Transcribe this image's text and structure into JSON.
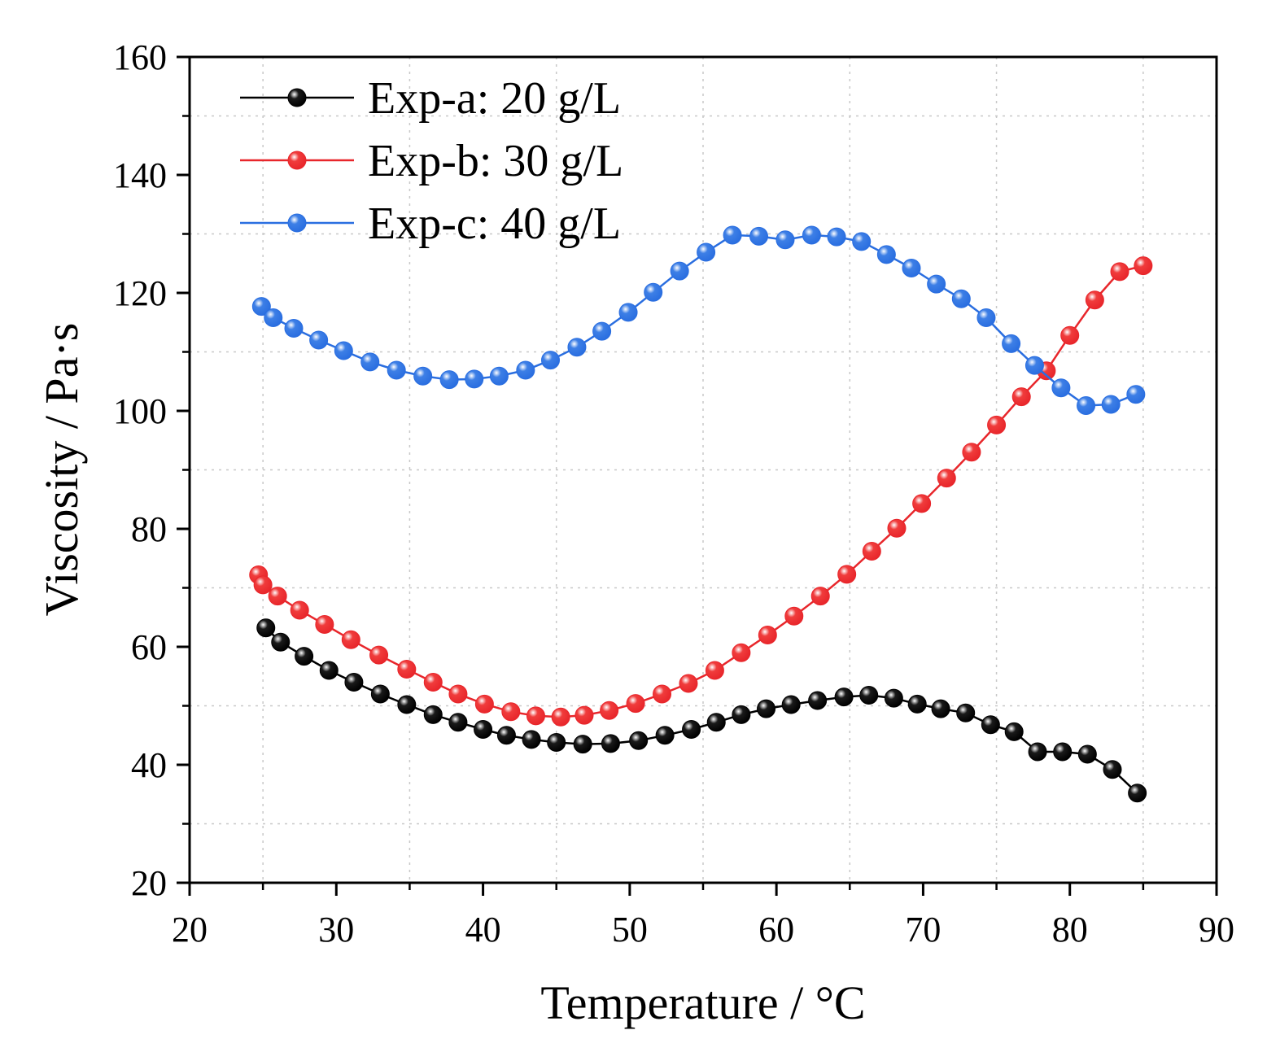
{
  "chart_data": {
    "type": "line",
    "title": "",
    "xlabel": "Temperature / °C",
    "ylabel": "Viscosity / Pa·s",
    "xlim": [
      20,
      90
    ],
    "ylim": [
      20,
      160
    ],
    "xticks": [
      20,
      30,
      40,
      50,
      60,
      70,
      80,
      90
    ],
    "yticks": [
      20,
      40,
      60,
      80,
      100,
      120,
      140,
      160
    ],
    "grid": true,
    "legend_position": "top-left",
    "series": [
      {
        "name": "Exp-a: 20 g/L",
        "color": "#000000",
        "marker_color": "#1a1a1a",
        "x": [
          25.2,
          26.2,
          27.8,
          29.5,
          31.2,
          33.0,
          34.8,
          36.6,
          38.3,
          40.0,
          41.6,
          43.3,
          45.0,
          46.8,
          48.7,
          50.6,
          52.4,
          54.2,
          55.9,
          57.6,
          59.3,
          61.0,
          62.8,
          64.6,
          66.3,
          68.0,
          69.6,
          71.2,
          72.9,
          74.6,
          76.2,
          77.8,
          79.5,
          81.2,
          82.9,
          84.6
        ],
        "y": [
          63.2,
          60.8,
          58.4,
          56.0,
          54.0,
          52.0,
          50.2,
          48.5,
          47.2,
          46.0,
          45.0,
          44.3,
          43.8,
          43.5,
          43.6,
          44.1,
          45.0,
          46.0,
          47.2,
          48.5,
          49.5,
          50.2,
          50.9,
          51.5,
          51.8,
          51.3,
          50.3,
          49.5,
          48.8,
          46.8,
          45.6,
          42.2,
          42.2,
          41.8,
          39.2,
          35.2
        ]
      },
      {
        "name": "Exp-b: 30 g/L",
        "color": "#e8262b",
        "marker_color": "#f03c3c",
        "x": [
          24.7,
          25.0,
          26.0,
          27.5,
          29.2,
          31.0,
          32.9,
          34.8,
          36.6,
          38.3,
          40.1,
          41.9,
          43.6,
          45.3,
          46.9,
          48.6,
          50.4,
          52.2,
          54.0,
          55.8,
          57.6,
          59.4,
          61.2,
          63.0,
          64.8,
          66.5,
          68.2,
          69.9,
          71.6,
          73.3,
          75.0,
          76.7,
          78.4,
          80.0,
          81.7,
          83.4,
          85.0
        ],
        "y": [
          72.2,
          70.5,
          68.6,
          66.2,
          63.8,
          61.2,
          58.6,
          56.2,
          54.0,
          52.0,
          50.3,
          49.0,
          48.3,
          48.1,
          48.4,
          49.2,
          50.4,
          52.0,
          53.8,
          56.0,
          59.0,
          62.0,
          65.2,
          68.6,
          72.3,
          76.2,
          80.1,
          84.3,
          88.6,
          93.0,
          97.6,
          102.4,
          106.8,
          112.8,
          118.8,
          123.6,
          124.6
        ]
      },
      {
        "name": "Exp-c: 40 g/L",
        "color": "#2a6ee0",
        "marker_color": "#3d7fe6",
        "x": [
          24.9,
          25.7,
          27.1,
          28.8,
          30.5,
          32.3,
          34.1,
          35.9,
          37.7,
          39.4,
          41.1,
          42.9,
          44.6,
          46.4,
          48.1,
          49.9,
          51.6,
          53.4,
          55.2,
          57.0,
          58.8,
          60.6,
          62.4,
          64.1,
          65.8,
          67.5,
          69.2,
          70.9,
          72.6,
          74.3,
          76.0,
          77.6,
          79.4,
          81.1,
          82.8,
          84.5
        ],
        "y": [
          117.7,
          115.8,
          114.0,
          112.0,
          110.2,
          108.3,
          106.9,
          105.9,
          105.3,
          105.4,
          105.9,
          106.9,
          108.6,
          110.8,
          113.5,
          116.7,
          120.1,
          123.7,
          126.9,
          129.8,
          129.6,
          129.0,
          129.8,
          129.5,
          128.7,
          126.5,
          124.2,
          121.5,
          119.0,
          115.8,
          111.4,
          107.7,
          103.9,
          100.9,
          101.1,
          102.8
        ]
      }
    ]
  }
}
